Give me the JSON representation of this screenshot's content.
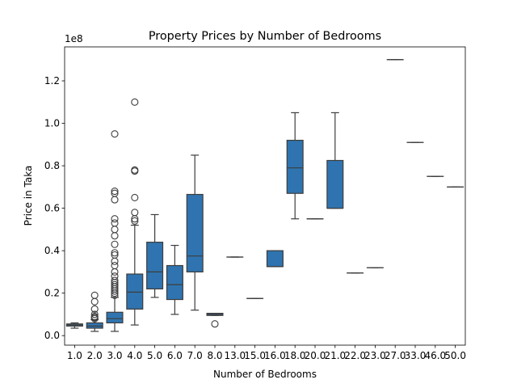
{
  "chart_data": {
    "type": "box",
    "title": "Property Prices by Number of Bedrooms",
    "xlabel": "Number of Bedrooms",
    "ylabel": "Price in Taka",
    "y_offset_label": "1e8",
    "y_scale": 100000000,
    "ylim": [
      -4500000,
      136000000
    ],
    "yticks": [
      0,
      20000000,
      40000000,
      60000000,
      80000000,
      100000000,
      120000000
    ],
    "ytick_labels": [
      "0.0",
      "0.2",
      "0.4",
      "0.6",
      "0.8",
      "1.0",
      "1.2"
    ],
    "grid": false,
    "box_color": "#2f74b0",
    "line_color": "#3d3d3d",
    "categories": [
      "1.0",
      "2.0",
      "3.0",
      "4.0",
      "5.0",
      "6.0",
      "7.0",
      "8.0",
      "13.0",
      "15.0",
      "16.0",
      "18.0",
      "20.0",
      "21.0",
      "22.0",
      "23.0",
      "27.0",
      "33.0",
      "46.0",
      "50.0"
    ],
    "boxes": [
      {
        "category": "1.0",
        "whislo": 3500000,
        "q1": 4500000,
        "med": 5000000,
        "q3": 5500000,
        "whishi": 6000000,
        "fliers": []
      },
      {
        "category": "2.0",
        "whislo": 2000000,
        "q1": 3500000,
        "med": 4500000,
        "q3": 6000000,
        "whishi": 7500000,
        "fliers": [
          8000000,
          8500000,
          9000000,
          10000000,
          12500000,
          16000000,
          19000000
        ]
      },
      {
        "category": "3.0",
        "whislo": 2000000,
        "q1": 6000000,
        "med": 8000000,
        "q3": 11000000,
        "whishi": 18000000,
        "fliers": [
          19000000,
          20000000,
          21000000,
          22000000,
          23000000,
          24000000,
          25000000,
          26000000,
          28000000,
          30000000,
          33000000,
          35000000,
          38000000,
          39000000,
          43000000,
          47000000,
          50000000,
          53000000,
          55000000,
          64000000,
          67000000,
          68000000,
          95000000
        ]
      },
      {
        "category": "4.0",
        "whislo": 5000000,
        "q1": 12500000,
        "med": 20500000,
        "q3": 29000000,
        "whishi": 52000000,
        "fliers": [
          54000000,
          55000000,
          58000000,
          65000000,
          77500000,
          78000000,
          110000000
        ]
      },
      {
        "category": "5.0",
        "whislo": 18000000,
        "q1": 22000000,
        "med": 30000000,
        "q3": 44000000,
        "whishi": 57000000,
        "fliers": []
      },
      {
        "category": "6.0",
        "whislo": 10000000,
        "q1": 17000000,
        "med": 24000000,
        "q3": 33000000,
        "whishi": 42500000,
        "fliers": []
      },
      {
        "category": "7.0",
        "whislo": 12000000,
        "q1": 30000000,
        "med": 37500000,
        "q3": 66500000,
        "whishi": 85000000,
        "fliers": []
      },
      {
        "category": "8.0",
        "whislo": 9500000,
        "q1": 9500000,
        "med": 10000000,
        "q3": 10500000,
        "whishi": 10500000,
        "fliers": [
          5500000
        ]
      },
      {
        "category": "13.0",
        "whislo": 37000000,
        "q1": 37000000,
        "med": 37000000,
        "q3": 37000000,
        "whishi": 37000000,
        "fliers": []
      },
      {
        "category": "15.0",
        "whislo": 17500000,
        "q1": 17500000,
        "med": 17500000,
        "q3": 17500000,
        "whishi": 17500000,
        "fliers": []
      },
      {
        "category": "16.0",
        "whislo": 32500000,
        "q1": 32500000,
        "med": 32500000,
        "q3": 40000000,
        "whishi": 40000000,
        "fliers": []
      },
      {
        "category": "18.0",
        "whislo": 55000000,
        "q1": 67000000,
        "med": 79000000,
        "q3": 92000000,
        "whishi": 105000000,
        "fliers": []
      },
      {
        "category": "20.0",
        "whislo": 55000000,
        "q1": 55000000,
        "med": 55000000,
        "q3": 55000000,
        "whishi": 55000000,
        "fliers": []
      },
      {
        "category": "21.0",
        "whislo": 60000000,
        "q1": 60000000,
        "med": 60000000,
        "q3": 82500000,
        "whishi": 105000000,
        "fliers": []
      },
      {
        "category": "22.0",
        "whislo": 29500000,
        "q1": 29500000,
        "med": 29500000,
        "q3": 29500000,
        "whishi": 29500000,
        "fliers": []
      },
      {
        "category": "23.0",
        "whislo": 32000000,
        "q1": 32000000,
        "med": 32000000,
        "q3": 32000000,
        "whishi": 32000000,
        "fliers": []
      },
      {
        "category": "27.0",
        "whislo": 130000000,
        "q1": 130000000,
        "med": 130000000,
        "q3": 130000000,
        "whishi": 130000000,
        "fliers": []
      },
      {
        "category": "33.0",
        "whislo": 91000000,
        "q1": 91000000,
        "med": 91000000,
        "q3": 91000000,
        "whishi": 91000000,
        "fliers": []
      },
      {
        "category": "46.0",
        "whislo": 75000000,
        "q1": 75000000,
        "med": 75000000,
        "q3": 75000000,
        "whishi": 75000000,
        "fliers": []
      },
      {
        "category": "50.0",
        "whislo": 70000000,
        "q1": 70000000,
        "med": 70000000,
        "q3": 70000000,
        "whishi": 70000000,
        "fliers": []
      }
    ]
  }
}
